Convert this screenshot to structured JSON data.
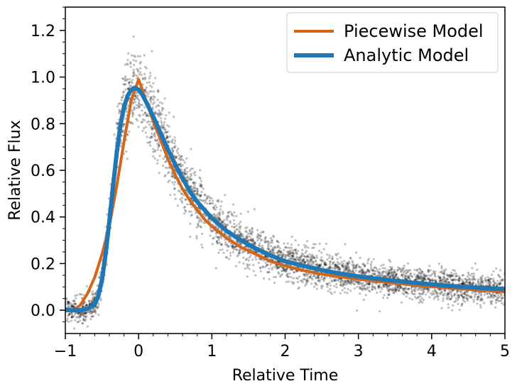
{
  "chart_data": {
    "type": "line",
    "title": "",
    "xlabel": "Relative Time",
    "ylabel": "Relative Flux",
    "xlim": [
      -1,
      5
    ],
    "ylim": [
      -0.1,
      1.3
    ],
    "x_ticks": [
      -1,
      0,
      1,
      2,
      3,
      4,
      5
    ],
    "x_tick_labels": [
      "−1",
      "0",
      "1",
      "2",
      "3",
      "4",
      "5"
    ],
    "y_ticks": [
      0.0,
      0.2,
      0.4,
      0.6,
      0.8,
      1.0,
      1.2
    ],
    "y_tick_labels": [
      "0.0",
      "0.2",
      "0.4",
      "0.6",
      "0.8",
      "1.0",
      "1.2"
    ],
    "grid": false,
    "legend": {
      "position": "top-right",
      "entries": [
        {
          "label": "Piecewise Model",
          "color": "#d4661a"
        },
        {
          "label": "Analytic Model",
          "color": "#1f77b4"
        }
      ]
    },
    "series": [
      {
        "name": "Piecewise Model",
        "color": "#d4661a",
        "x": [
          -1.0,
          -0.9,
          -0.8,
          -0.7,
          -0.6,
          -0.5,
          -0.4,
          -0.3,
          -0.2,
          -0.1,
          0.0,
          0.1,
          0.2,
          0.3,
          0.4,
          0.5,
          0.6,
          0.7,
          0.8,
          0.9,
          1.0,
          1.2,
          1.4,
          1.6,
          1.8,
          2.0,
          2.25,
          2.5,
          2.75,
          3.0,
          3.25,
          3.5,
          3.75,
          4.0,
          4.25,
          4.5,
          4.75,
          5.0
        ],
        "y": [
          0.0,
          0.0,
          0.02,
          0.07,
          0.14,
          0.24,
          0.36,
          0.53,
          0.72,
          0.9,
          0.99,
          0.9,
          0.81,
          0.73,
          0.65,
          0.58,
          0.52,
          0.47,
          0.43,
          0.39,
          0.36,
          0.31,
          0.27,
          0.24,
          0.21,
          0.19,
          0.17,
          0.155,
          0.143,
          0.133,
          0.124,
          0.116,
          0.108,
          0.101,
          0.095,
          0.089,
          0.084,
          0.079
        ]
      },
      {
        "name": "Analytic Model",
        "color": "#1f77b4",
        "x": [
          -1.0,
          -0.9,
          -0.8,
          -0.7,
          -0.6,
          -0.55,
          -0.5,
          -0.45,
          -0.4,
          -0.35,
          -0.3,
          -0.25,
          -0.2,
          -0.15,
          -0.1,
          -0.05,
          0.0,
          0.05,
          0.1,
          0.2,
          0.3,
          0.4,
          0.5,
          0.6,
          0.7,
          0.8,
          0.9,
          1.0,
          1.2,
          1.4,
          1.6,
          1.8,
          2.0,
          2.25,
          2.5,
          2.75,
          3.0,
          3.25,
          3.5,
          3.75,
          4.0,
          4.25,
          4.5,
          4.75,
          5.0
        ],
        "y": [
          0.0,
          0.0,
          0.0,
          0.005,
          0.025,
          0.06,
          0.13,
          0.24,
          0.38,
          0.53,
          0.67,
          0.79,
          0.87,
          0.92,
          0.945,
          0.955,
          0.945,
          0.925,
          0.895,
          0.83,
          0.76,
          0.69,
          0.625,
          0.565,
          0.51,
          0.465,
          0.43,
          0.395,
          0.34,
          0.3,
          0.265,
          0.235,
          0.21,
          0.19,
          0.172,
          0.157,
          0.145,
          0.135,
          0.126,
          0.118,
          0.111,
          0.104,
          0.099,
          0.094,
          0.09
        ]
      }
    ],
    "scatter": {
      "name": "",
      "color": "#000000",
      "opacity": 0.25,
      "description_free": true
    }
  }
}
